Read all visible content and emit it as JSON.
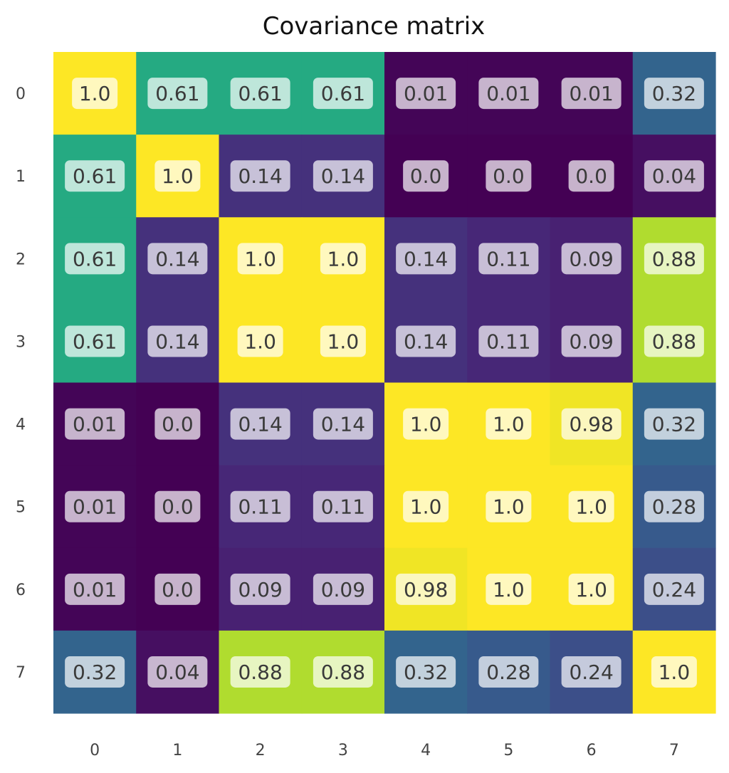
{
  "chart_data": {
    "type": "heatmap",
    "title": "Covariance matrix",
    "xlabel": "",
    "ylabel": "",
    "x_ticks": [
      "0",
      "1",
      "2",
      "3",
      "4",
      "5",
      "6",
      "7"
    ],
    "y_ticks": [
      "0",
      "1",
      "2",
      "3",
      "4",
      "5",
      "6",
      "7"
    ],
    "colormap": "viridis",
    "value_range": [
      0,
      1
    ],
    "values": [
      [
        1.0,
        0.61,
        0.61,
        0.61,
        0.01,
        0.01,
        0.01,
        0.32
      ],
      [
        0.61,
        1.0,
        0.14,
        0.14,
        0.0,
        0.0,
        0.0,
        0.04
      ],
      [
        0.61,
        0.14,
        1.0,
        1.0,
        0.14,
        0.11,
        0.09,
        0.88
      ],
      [
        0.61,
        0.14,
        1.0,
        1.0,
        0.14,
        0.11,
        0.09,
        0.88
      ],
      [
        0.01,
        0.0,
        0.14,
        0.14,
        1.0,
        1.0,
        0.98,
        0.32
      ],
      [
        0.01,
        0.0,
        0.11,
        0.11,
        1.0,
        1.0,
        1.0,
        0.28
      ],
      [
        0.01,
        0.0,
        0.09,
        0.09,
        0.98,
        1.0,
        1.0,
        0.24
      ],
      [
        0.32,
        0.04,
        0.88,
        0.88,
        0.32,
        0.28,
        0.24,
        1.0
      ]
    ],
    "labels": [
      [
        "1.0",
        "0.61",
        "0.61",
        "0.61",
        "0.01",
        "0.01",
        "0.01",
        "0.32"
      ],
      [
        "0.61",
        "1.0",
        "0.14",
        "0.14",
        "0.0",
        "0.0",
        "0.0",
        "0.04"
      ],
      [
        "0.61",
        "0.14",
        "1.0",
        "1.0",
        "0.14",
        "0.11",
        "0.09",
        "0.88"
      ],
      [
        "0.61",
        "0.14",
        "1.0",
        "1.0",
        "0.14",
        "0.11",
        "0.09",
        "0.88"
      ],
      [
        "0.01",
        "0.0",
        "0.14",
        "0.14",
        "1.0",
        "1.0",
        "0.98",
        "0.32"
      ],
      [
        "0.01",
        "0.0",
        "0.11",
        "0.11",
        "1.0",
        "1.0",
        "1.0",
        "0.28"
      ],
      [
        "0.01",
        "0.0",
        "0.09",
        "0.09",
        "0.98",
        "1.0",
        "1.0",
        "0.24"
      ],
      [
        "0.32",
        "0.04",
        "0.88",
        "0.88",
        "0.32",
        "0.28",
        "0.24",
        "1.0"
      ]
    ],
    "grid": false,
    "legend": "none"
  }
}
